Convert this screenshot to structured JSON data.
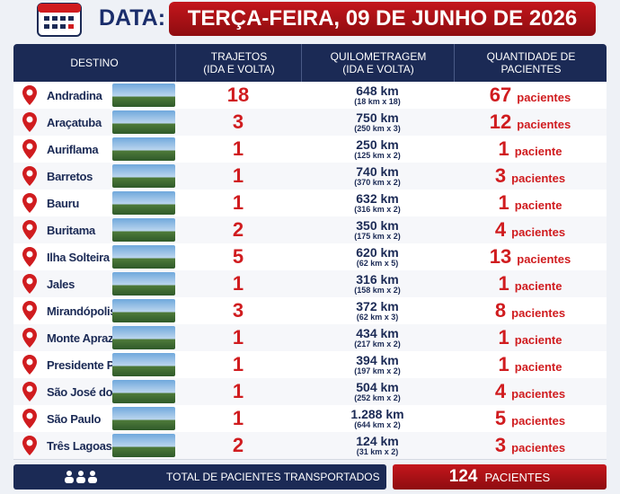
{
  "header": {
    "label": "DATA:",
    "date": "TERÇA-FEIRA, 09 DE JUNHO DE 2026"
  },
  "table": {
    "columns": [
      [
        "DESTINO"
      ],
      [
        "TRAJETOS",
        "(IDA E VOLTA)"
      ],
      [
        "QUILOMETRAGEM",
        "(IDA E VOLTA)"
      ],
      [
        "QUANTIDADE DE",
        "PACIENTES"
      ]
    ],
    "rows": [
      {
        "destino": "Andradina",
        "trajetos": 18,
        "km": "648 km",
        "km_detail": "(18 km x 18)",
        "pacientes": 67,
        "pacientes_label": "pacientes"
      },
      {
        "destino": "Araçatuba",
        "trajetos": 3,
        "km": "750 km",
        "km_detail": "(250 km x 3)",
        "pacientes": 12,
        "pacientes_label": "pacientes"
      },
      {
        "destino": "Auriflama",
        "trajetos": 1,
        "km": "250 km",
        "km_detail": "(125 km x 2)",
        "pacientes": 1,
        "pacientes_label": "paciente"
      },
      {
        "destino": "Barretos",
        "trajetos": 1,
        "km": "740 km",
        "km_detail": "(370 km x 2)",
        "pacientes": 3,
        "pacientes_label": "pacientes"
      },
      {
        "destino": "Bauru",
        "trajetos": 1,
        "km": "632 km",
        "km_detail": "(316 km x 2)",
        "pacientes": 1,
        "pacientes_label": "paciente"
      },
      {
        "destino": "Buritama",
        "trajetos": 2,
        "km": "350 km",
        "km_detail": "(175 km x 2)",
        "pacientes": 4,
        "pacientes_label": "pacientes"
      },
      {
        "destino": "Ilha Solteira",
        "trajetos": 5,
        "km": "620 km",
        "km_detail": "(62 km x 5)",
        "pacientes": 13,
        "pacientes_label": "pacientes"
      },
      {
        "destino": "Jales",
        "trajetos": 1,
        "km": "316 km",
        "km_detail": "(158 km x 2)",
        "pacientes": 1,
        "pacientes_label": "paciente"
      },
      {
        "destino": "Mirandópolis",
        "trajetos": 3,
        "km": "372 km",
        "km_detail": "(62 km x 3)",
        "pacientes": 8,
        "pacientes_label": "pacientes"
      },
      {
        "destino": "Monte Aprazível",
        "trajetos": 1,
        "km": "434 km",
        "km_detail": "(217 km x 2)",
        "pacientes": 1,
        "pacientes_label": "paciente"
      },
      {
        "destino": "Presidente Prudente",
        "trajetos": 1,
        "km": "394 km",
        "km_detail": "(197 km x 2)",
        "pacientes": 1,
        "pacientes_label": "paciente"
      },
      {
        "destino": "São José do Rio Preto",
        "trajetos": 1,
        "km": "504 km",
        "km_detail": "(252 km x 2)",
        "pacientes": 4,
        "pacientes_label": "pacientes"
      },
      {
        "destino": "São Paulo",
        "trajetos": 1,
        "km": "1.288 km",
        "km_detail": "(644 km x 2)",
        "pacientes": 5,
        "pacientes_label": "pacientes"
      },
      {
        "destino": "Três Lagoas-MS",
        "trajetos": 2,
        "km": "124 km",
        "km_detail": "(31 km x 2)",
        "pacientes": 3,
        "pacientes_label": "pacientes"
      }
    ]
  },
  "total": {
    "label": "TOTAL DE PACIENTES TRANSPORTADOS",
    "value": 124,
    "unit": "PACIENTES"
  }
}
